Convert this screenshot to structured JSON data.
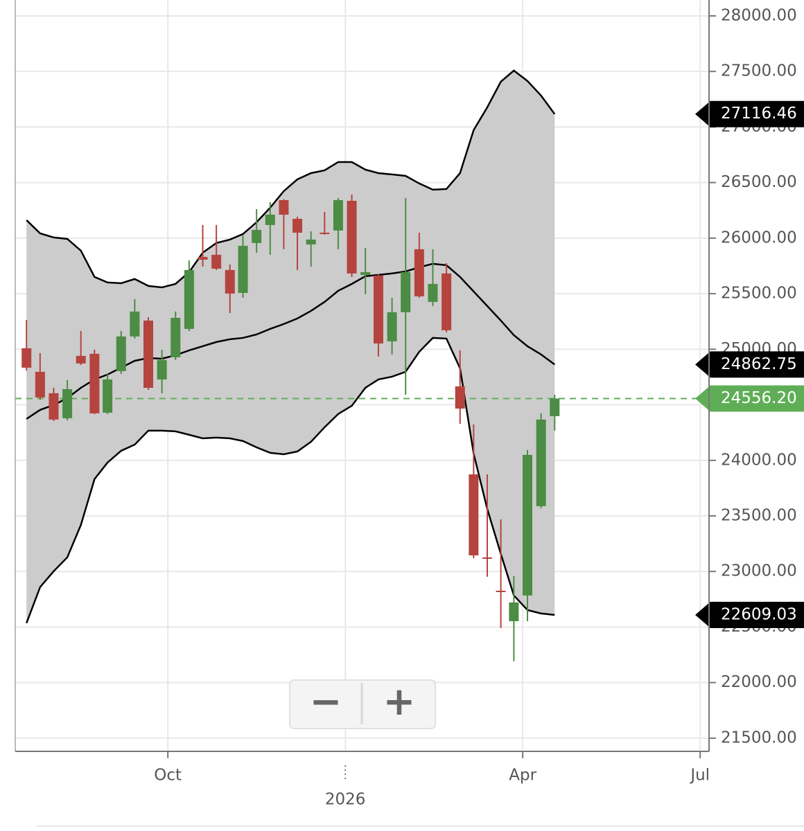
{
  "chart_data": {
    "type": "candlestick",
    "x": [
      7.61,
      7.84,
      8.07,
      8.3,
      8.53,
      8.76,
      8.98,
      9.21,
      9.44,
      9.67,
      9.9,
      10.13,
      10.36,
      10.59,
      10.82,
      11.05,
      11.27,
      11.5,
      11.73,
      11.96,
      12.19,
      12.42,
      12.65,
      12.88,
      13.11,
      13.34,
      13.56,
      13.79,
      14.02,
      14.25,
      14.48,
      14.71,
      14.94,
      15.17,
      15.4,
      15.63,
      15.85,
      16.08,
      16.31,
      16.54
    ],
    "open": [
      25009,
      24797,
      24604,
      24379,
      24940,
      24959,
      24429,
      24803,
      25115,
      25258,
      24728,
      24928,
      25183,
      25831,
      25850,
      25713,
      25507,
      25956,
      26118,
      26342,
      26174,
      25943,
      26049,
      26068,
      26336,
      25669,
      25663,
      25071,
      25333,
      25900,
      25426,
      25682,
      24666,
      23874,
      23127,
      22827,
      22553,
      22784,
      23588,
      24398
    ],
    "high": [
      25264,
      24965,
      24653,
      24722,
      25164,
      24996,
      24778,
      25164,
      25451,
      25289,
      24996,
      25339,
      25800,
      26118,
      26118,
      25763,
      26024,
      26261,
      26324,
      26349,
      26193,
      26062,
      26236,
      26361,
      26392,
      25912,
      25676,
      25464,
      26361,
      26049,
      25900,
      25775,
      24990,
      24323,
      23874,
      23469,
      22958,
      24093,
      24423,
      24591
    ],
    "low": [
      24809,
      24547,
      24354,
      24360,
      24859,
      24417,
      24417,
      24778,
      25096,
      24635,
      24604,
      24903,
      25164,
      25744,
      25713,
      25326,
      25464,
      25869,
      25850,
      25900,
      25713,
      25744,
      26031,
      25900,
      25651,
      25495,
      24934,
      24953,
      24591,
      25464,
      25389,
      25152,
      24329,
      23120,
      22952,
      22491,
      22192,
      22553,
      23569,
      24267
    ],
    "close": [
      24834,
      24566,
      24367,
      24641,
      24872,
      24423,
      24728,
      25115,
      25339,
      24653,
      24903,
      25283,
      25713,
      25806,
      25725,
      25501,
      25931,
      26074,
      26211,
      26211,
      26049,
      25987,
      26043,
      26342,
      25682,
      25694,
      25052,
      25333,
      25694,
      25476,
      25588,
      25171,
      24466,
      23145,
      23114,
      22815,
      22721,
      24049,
      24367,
      24556.2
    ],
    "last_close_label": "24556.20",
    "upper_band": [
      26162,
      26043,
      26006,
      25993,
      25887,
      25651,
      25601,
      25594,
      25632,
      25570,
      25557,
      25588,
      25694,
      25869,
      25956,
      25987,
      26037,
      26143,
      26274,
      26423,
      26529,
      26585,
      26610,
      26685,
      26685,
      26616,
      26585,
      26573,
      26560,
      26492,
      26436,
      26442,
      26585,
      26972,
      27177,
      27408,
      27508,
      27414,
      27283,
      27116.46
    ],
    "middle_band": [
      24373,
      24454,
      24498,
      24560,
      24653,
      24728,
      24772,
      24834,
      24896,
      24921,
      24915,
      24946,
      24990,
      25027,
      25065,
      25090,
      25102,
      25133,
      25183,
      25227,
      25277,
      25345,
      25426,
      25526,
      25588,
      25657,
      25669,
      25682,
      25700,
      25738,
      25769,
      25756,
      25651,
      25520,
      25389,
      25258,
      25127,
      25027,
      24953,
      24862.75
    ],
    "lower_band": [
      22535,
      22859,
      23002,
      23127,
      23419,
      23831,
      23980,
      24086,
      24142,
      24267,
      24267,
      24261,
      24230,
      24198,
      24205,
      24198,
      24174,
      24117,
      24068,
      24055,
      24080,
      24167,
      24298,
      24417,
      24491,
      24653,
      24728,
      24753,
      24797,
      24977,
      25102,
      25096,
      24828,
      24061,
      23563,
      23158,
      22784,
      22653,
      22622,
      22609.03
    ],
    "up_color": "#4c8c44",
    "down_color": "#b5443f",
    "band_color": "#cccccc",
    "band_line_color": "#000000",
    "last_price_color": "#5fae57",
    "xlim": [
      7.42,
      19.15
    ],
    "xticks": [
      {
        "value": 10,
        "label": "Oct"
      },
      {
        "value": 13,
        "label": "2026"
      },
      {
        "value": 16,
        "label": "Apr"
      },
      {
        "value": 19,
        "label": "Jul"
      }
    ],
    "ylim": [
      21381,
      28143
    ],
    "yticks": [
      {
        "value": 21500,
        "label": "21500.00"
      },
      {
        "value": 22000,
        "label": "22000.00"
      },
      {
        "value": 22500,
        "label": "22500.00"
      },
      {
        "value": 23000,
        "label": "23000.00"
      },
      {
        "value": 23500,
        "label": "23500.00"
      },
      {
        "value": 24000,
        "label": "24000.00"
      },
      {
        "value": 24500,
        "label": "24500.00"
      },
      {
        "value": 25000,
        "label": "25000.00"
      },
      {
        "value": 25500,
        "label": "25500.00"
      },
      {
        "value": 26000,
        "label": "26000.00"
      },
      {
        "value": 26500,
        "label": "26500.00"
      },
      {
        "value": 27000,
        "label": "27000.00"
      },
      {
        "value": 27500,
        "label": "27500.00"
      },
      {
        "value": 28000,
        "label": "28000.00"
      }
    ],
    "grid": true,
    "y_axis_side": "right"
  },
  "controls": [
    "−",
    "+"
  ]
}
